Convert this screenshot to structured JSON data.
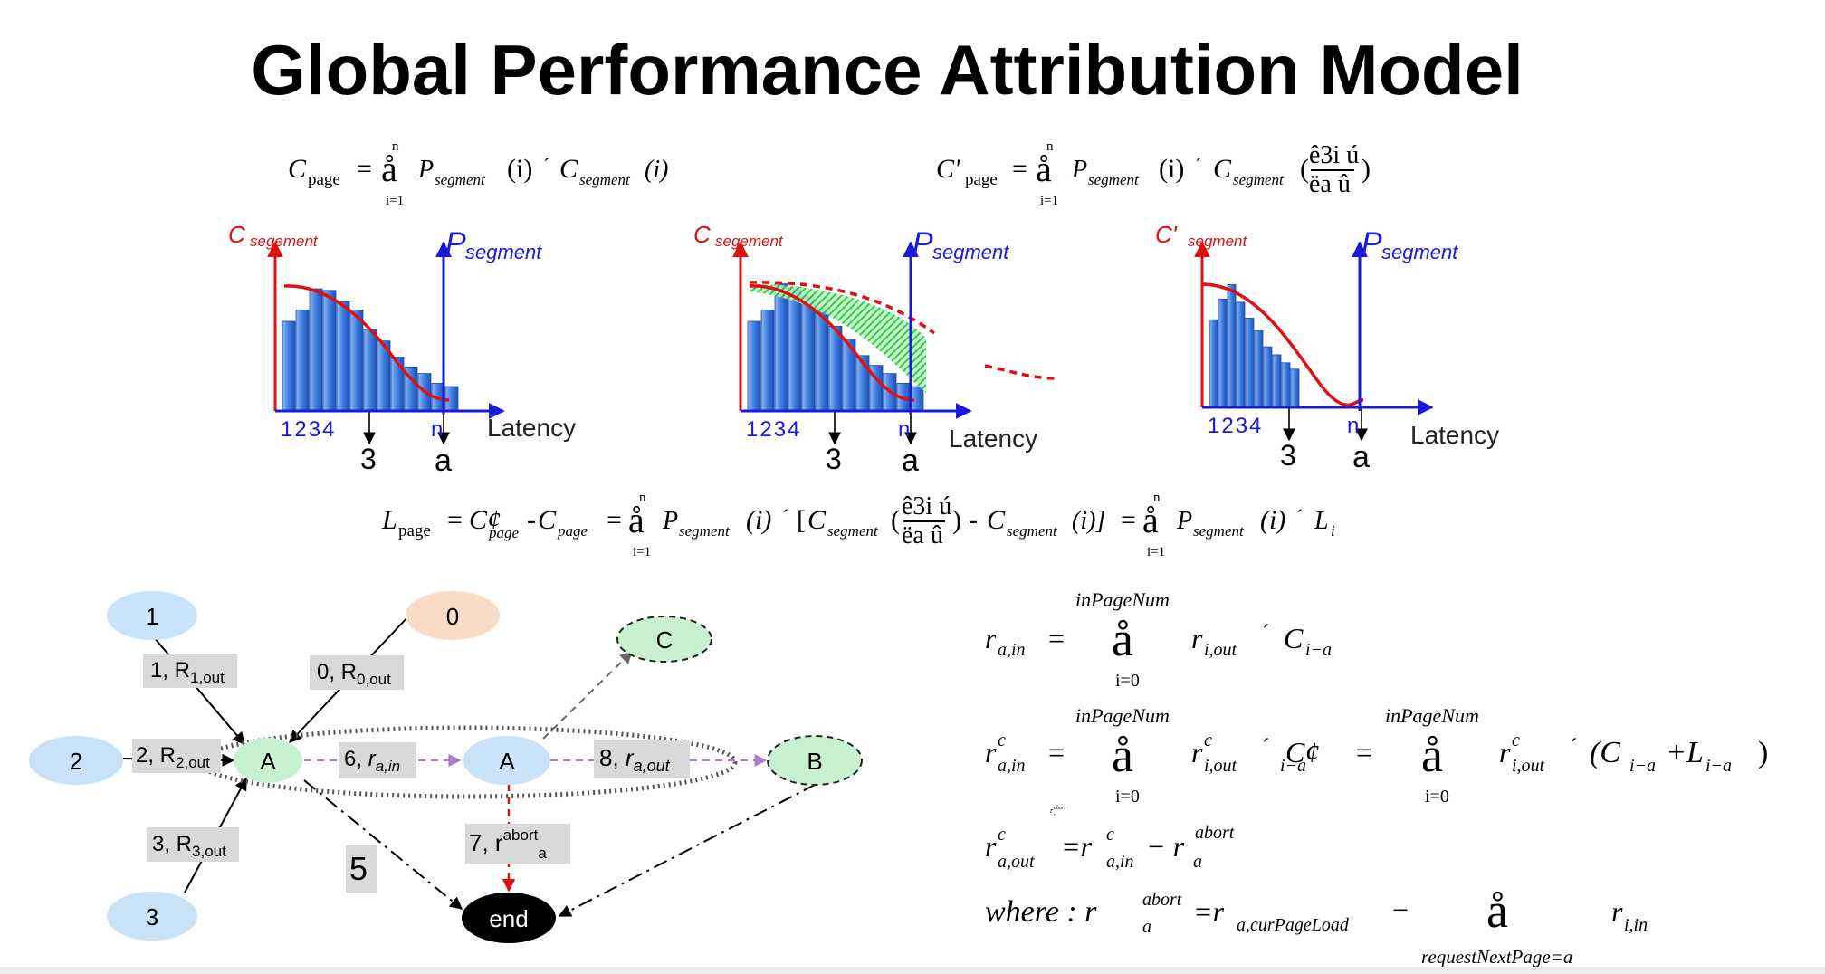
{
  "title": "Global Performance Attribution Model",
  "colors": {
    "cost": "#e01010",
    "prob": "#1a1adc",
    "bar": "#2f6fd6",
    "green_fill": "#2ecc40",
    "node_blue": "#c9e2f7",
    "node_orange": "#f9dcc7",
    "node_green": "#c8f2cf"
  },
  "formulas": {
    "c_page": {
      "lhs": "C",
      "lhs_sub": "page",
      "eq": "=",
      "sum": "å",
      "sum_top": "n",
      "sum_bottom": "i=1",
      "p": "P",
      "p_sub": "segment",
      "arg": "(i)",
      "times": "´",
      "c": "C",
      "c_sub": "segment",
      "c_arg": "(i)"
    },
    "c_prime_page": {
      "lhs": "C'",
      "lhs_sub": "page",
      "eq": "=",
      "sum": "å",
      "sum_top": "n",
      "sum_bottom": "i=1",
      "p": "P",
      "p_sub": "segment",
      "arg": "(i)",
      "times": "´",
      "c": "C",
      "c_sub": "segment",
      "frac_top": "ê3i ú",
      "frac_bottom": "ëa û"
    },
    "l_page": {
      "lhs": "L",
      "lhs_sub": "page",
      "eq": "=",
      "cprime": "C¢",
      "cprime_sub": "page",
      "minus": "-",
      "c": "C",
      "c_sub": "page",
      "sum": "å",
      "sum_top": "n",
      "sum_bottom": "i=1",
      "p": "P",
      "p_sub": "segment",
      "arg": "(i)",
      "times": "´",
      "bracket_open": "[",
      "c2": "C",
      "c2_sub": "segment",
      "frac_top": "ê3i ú",
      "frac_bottom": "ëa û",
      "minus2": "-",
      "c3": "C",
      "c3_sub": "segment",
      "c3_arg": "(i)]",
      "eq2": "=",
      "p2": "P",
      "p2_sub": "segment",
      "arg2": "(i)",
      "times2": "´",
      "li": "L",
      "li_sub": "i"
    },
    "r_in": {
      "r": "r",
      "r_sub": "a,in",
      "eq": "=",
      "limit_top": "inPageNum",
      "sum": "å",
      "limit_bottom": "i=0",
      "term": "r",
      "term_sub": "i,out",
      "times": "´",
      "c": "C",
      "c_sub": "i−a"
    },
    "rc_in": {
      "r": "r",
      "r_sup": "c",
      "r_sub": "a,in",
      "eq": "=",
      "limit_top": "inPageNum",
      "sum": "å",
      "limit_bottom": "i=0",
      "term": "r",
      "term_sup": "c",
      "term_sub": "i,out",
      "times": "´",
      "c": "C¢",
      "c_sub": "i−a",
      "eq2": "=",
      "limit_top2": "inPageNum",
      "limit_bottom2": "i=0",
      "term2": "r",
      "term2_sup": "c",
      "term2_sub": "i,out",
      "times2": "´",
      "paren": "(C",
      "paren_sub": "i−a",
      "plus": "+L",
      "plus_sub": "i−a",
      "close": ")"
    },
    "rc_out": {
      "tiny": "r",
      "tiny_sup": "abort",
      "tiny_sub": "a",
      "r": "r",
      "r_sup": "c",
      "r_sub": "a,out",
      "eq": "=r",
      "eq_sup": "c",
      "eq_sub": "a,in",
      "minus": "− r",
      "minus_sup": "abort",
      "minus_sub": "a"
    },
    "where": {
      "where": "where : r",
      "where_sup": "abort",
      "where_sub": "a",
      "eq": "=r",
      "eq_sub": "a,curPageLoad",
      "minus": "−",
      "sum": "å",
      "limit_bottom": "requestNextPage=a",
      "term": "r",
      "term_sub": "i,in"
    }
  },
  "charts": [
    {
      "cost_label": "C",
      "cost_label_sub": "segement",
      "prob_label": "P",
      "prob_label_sub": "segment",
      "ticks": "1234",
      "n_tick": "n",
      "xlabel": "Latency",
      "marker_3": "3",
      "marker_a": "a",
      "bars": [
        0.55,
        0.62,
        0.75,
        0.74,
        0.67,
        0.62,
        0.5,
        0.43,
        0.33,
        0.27,
        0.23,
        0.17,
        0.15
      ]
    },
    {
      "cost_label": "C",
      "cost_label_sub": "segement",
      "prob_label": "P",
      "prob_label_sub": "segment",
      "ticks": "1234",
      "n_tick": "n",
      "xlabel": "Latency",
      "marker_3": "3",
      "marker_a": "a",
      "bars": [
        0.55,
        0.62,
        0.78,
        0.76,
        0.7,
        0.63,
        0.52,
        0.44,
        0.34,
        0.28,
        0.23,
        0.17,
        0.15
      ]
    },
    {
      "cost_label": "C'",
      "cost_label_sub": "segment",
      "prob_label": "P",
      "prob_label_sub": "segment",
      "ticks": "1234",
      "n_tick": "n",
      "xlabel": "Latency",
      "marker_3": "3",
      "marker_a": "a",
      "bars": [
        0.55,
        0.68,
        0.77,
        0.66,
        0.56,
        0.48,
        0.38,
        0.33,
        0.28,
        0.24
      ]
    }
  ],
  "graph": {
    "nodes": {
      "n1": "1",
      "n0": "0",
      "n2": "2",
      "n3": "3",
      "nC": "C",
      "nA1": "A",
      "nA2": "A",
      "nB": "B",
      "nEnd": "end"
    },
    "labels": {
      "r1": {
        "num": "1, R",
        "sub": "1,out"
      },
      "r0": {
        "num": "0, R",
        "sub": "0,out"
      },
      "r2": {
        "num": "2, R",
        "sub": "2,out"
      },
      "r3": {
        "num": "3, R",
        "sub": "3,out"
      },
      "r6": {
        "num": "6, ",
        "var": "r",
        "sub": "a,in"
      },
      "r8": {
        "num": "8, ",
        "var": "r",
        "sub": "a,out"
      },
      "r7": {
        "num": "7, r",
        "sup": "abort",
        "sub": "a"
      },
      "r5": "5"
    }
  }
}
